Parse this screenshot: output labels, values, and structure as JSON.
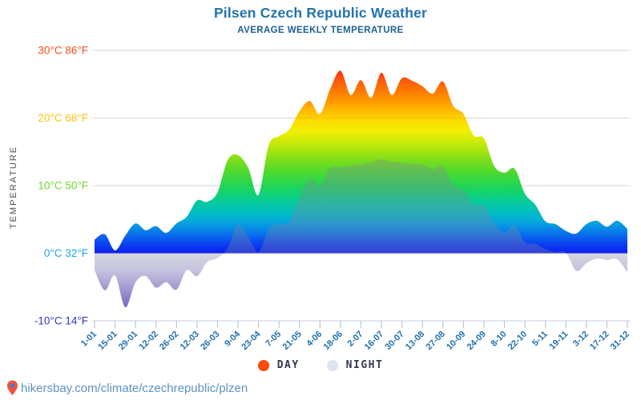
{
  "header": {
    "title": "Pilsen Czech Republic Weather",
    "subtitle": "AVERAGE WEEKLY TEMPERATURE",
    "title_color": "#2273af",
    "subtitle_color": "#1d6090"
  },
  "legend": {
    "items": [
      {
        "label": "DAY",
        "color": "#fc4a0a"
      },
      {
        "label": "NIGHT",
        "color": "#dee4ef"
      }
    ]
  },
  "footer": {
    "url": "hikersbay.com/climate/czechrepublic/plzen",
    "text_color": "#5e92c4",
    "pin_body_color": "#f2503c",
    "pin_dot_color": "#2f7fd2"
  },
  "y_axis": {
    "title": "TEMPERATURE",
    "title_color": "#4d4d4d",
    "ticks": [
      {
        "label": "30°C 86°F",
        "c": 30,
        "color": "#f94d1a"
      },
      {
        "label": "20°C 68°F",
        "c": 20,
        "color": "#fcc40d"
      },
      {
        "label": "10°C 50°F",
        "c": 10,
        "color": "#6fd92c"
      },
      {
        "label": "0°C 32°F",
        "c": 0,
        "color": "#1fa6f4"
      },
      {
        "label": "-10°C 14°F",
        "c": -10,
        "color": "#3333cc"
      }
    ],
    "gridline_color": "#e4e4e6",
    "bottom_line_color": "#c3cede"
  },
  "x_axis": {
    "labels": [
      "1-01",
      "15-01",
      "29-01",
      "12-02",
      "26-02",
      "12-03",
      "26-03",
      "9-04",
      "23-04",
      "7-05",
      "21-05",
      "4-06",
      "18-06",
      "2-07",
      "16-07",
      "30-07",
      "13-08",
      "27-08",
      "10-09",
      "24-09",
      "8-10",
      "22-10",
      "5-11",
      "19-11",
      "3-12",
      "17-12",
      "31-12"
    ],
    "label_color": "#1f6fad",
    "tick_color": "#b9c6da"
  },
  "chart_data": {
    "type": "area",
    "title": "Pilsen Czech Republic Weather",
    "subtitle": "AVERAGE WEEKLY TEMPERATURE",
    "ylabel": "TEMPERATURE",
    "y_unit": "°C",
    "ylim": [
      -10,
      30
    ],
    "x_tick_labels": [
      "1-01",
      "15-01",
      "29-01",
      "12-02",
      "26-02",
      "12-03",
      "26-03",
      "9-04",
      "23-04",
      "7-05",
      "21-05",
      "4-06",
      "18-06",
      "2-07",
      "16-07",
      "30-07",
      "13-08",
      "27-08",
      "10-09",
      "24-09",
      "8-10",
      "22-10",
      "5-11",
      "19-11",
      "3-12",
      "17-12",
      "31-12"
    ],
    "points_per_tick": 2,
    "grid": true,
    "legend_position": "bottom",
    "series": [
      {
        "name": "DAY",
        "values": [
          2.0,
          2.8,
          0.4,
          2.6,
          4.4,
          3.4,
          4.0,
          3.0,
          4.4,
          5.4,
          7.8,
          7.6,
          9.0,
          13.8,
          14.5,
          12.6,
          8.6,
          16.0,
          17.3,
          18.3,
          21.0,
          22.5,
          20.6,
          24.3,
          27.0,
          23.4,
          25.6,
          23.0,
          26.7,
          23.4,
          25.9,
          25.5,
          24.7,
          23.6,
          25.4,
          21.8,
          20.6,
          17.4,
          17.0,
          12.9,
          11.9,
          12.5,
          8.8,
          7.2,
          4.7,
          4.3,
          3.3,
          2.9,
          4.3,
          4.8,
          3.9,
          4.8,
          3.6
        ]
      },
      {
        "name": "NIGHT",
        "values": [
          -2.5,
          -5.5,
          -3.3,
          -8.0,
          -4.3,
          -3.4,
          -5.1,
          -4.3,
          -5.4,
          -2.5,
          -3.4,
          -1.3,
          -0.7,
          0.8,
          4.3,
          2.4,
          0.2,
          3.5,
          4.4,
          4.6,
          8.3,
          11.0,
          10.0,
          12.6,
          12.7,
          13.0,
          13.1,
          13.5,
          13.9,
          13.5,
          13.4,
          13.2,
          13.1,
          12.4,
          12.9,
          10.0,
          9.4,
          7.2,
          7.0,
          4.3,
          3.1,
          4.1,
          1.6,
          1.4,
          0.6,
          0.2,
          0.1,
          -2.6,
          -1.5,
          -0.8,
          -1.0,
          -0.9,
          -2.8
        ]
      }
    ],
    "day_gradient": [
      {
        "t": 0,
        "color": "#0a1ef0"
      },
      {
        "t": 1.5,
        "color": "#0b45f0"
      },
      {
        "t": 3,
        "color": "#0877ea"
      },
      {
        "t": 4.5,
        "color": "#04a3de"
      },
      {
        "t": 6,
        "color": "#02bcc2"
      },
      {
        "t": 7.5,
        "color": "#06cb9d"
      },
      {
        "t": 9,
        "color": "#13d36f"
      },
      {
        "t": 10.5,
        "color": "#2cd74b"
      },
      {
        "t": 12,
        "color": "#4cd92f"
      },
      {
        "t": 13.5,
        "color": "#74dd1d"
      },
      {
        "t": 15,
        "color": "#a3e311"
      },
      {
        "t": 16.5,
        "color": "#cdea08"
      },
      {
        "t": 18,
        "color": "#f0ee02"
      },
      {
        "t": 19.5,
        "color": "#fedd00"
      },
      {
        "t": 21,
        "color": "#ffbb00"
      },
      {
        "t": 22.5,
        "color": "#ff9900"
      },
      {
        "t": 24,
        "color": "#fe7a02"
      },
      {
        "t": 25.5,
        "color": "#fb5a0c"
      },
      {
        "t": 27,
        "color": "#f43517"
      },
      {
        "t": 28.5,
        "color": "#ee1b1e"
      },
      {
        "t": 30,
        "color": "#ea1522"
      }
    ],
    "night_gradient": [
      {
        "offset": 0,
        "color": "rgba(128,133,158,0.33)"
      },
      {
        "offset": 0.25,
        "color": "rgba(140,135,190,0.50)"
      },
      {
        "offset": 0.55,
        "color": "rgba(122,105,190,0.72)"
      },
      {
        "offset": 0.8,
        "color": "rgba(104,80,188,0.88)"
      },
      {
        "offset": 1,
        "color": "rgba(92,62,183,0.96)"
      }
    ]
  }
}
